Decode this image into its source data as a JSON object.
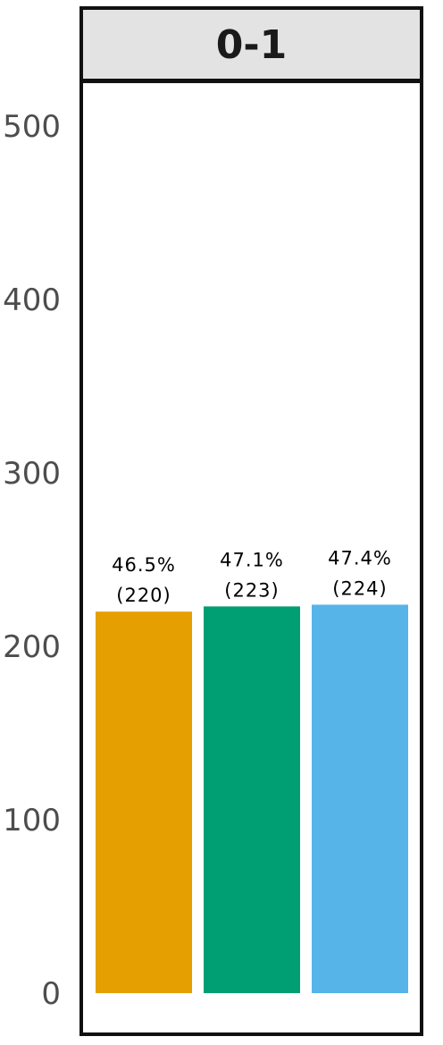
{
  "chart_data": {
    "type": "bar",
    "panel": "0-1",
    "categories": [
      "",
      "",
      ""
    ],
    "values": [
      220,
      223,
      224
    ],
    "percent_labels": [
      "46.5%",
      "47.1%",
      "47.4%"
    ],
    "count_labels": [
      "(220)",
      "(223)",
      "(224)"
    ],
    "colors": [
      "#E69F00",
      "#009E73",
      "#56B4E9"
    ],
    "y_ticks": [
      0,
      100,
      200,
      300,
      400,
      500
    ],
    "y_tick_labels": [
      "0",
      "100",
      "200",
      "300",
      "400",
      "500"
    ],
    "ylim": [
      0,
      500
    ],
    "grid": false,
    "title": "",
    "xlabel": "",
    "ylabel": ""
  }
}
